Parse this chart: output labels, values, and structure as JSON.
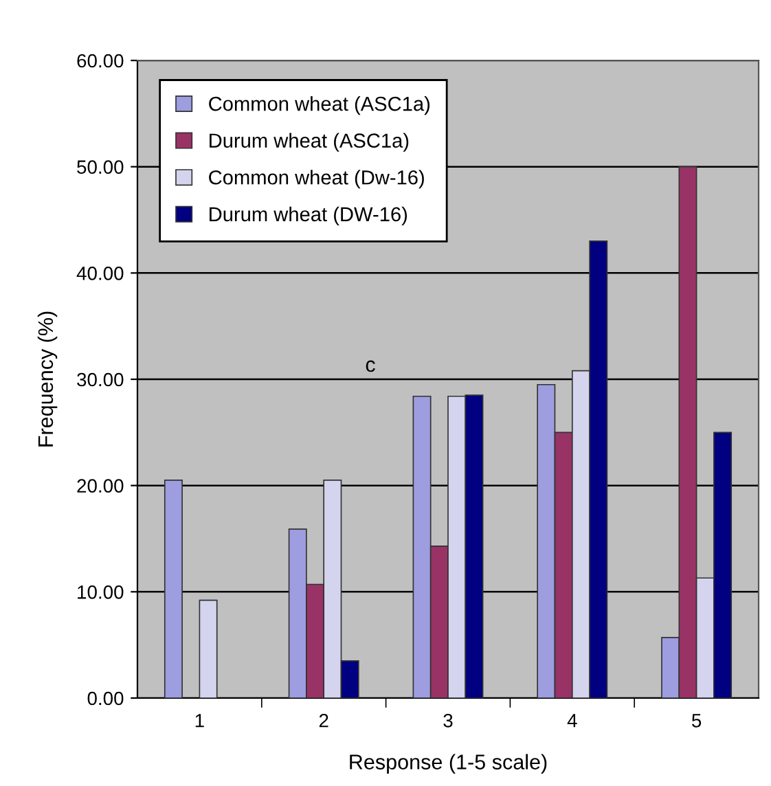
{
  "chart_data": {
    "type": "bar",
    "xlabel": "Response (1-5 scale)",
    "ylabel": "Frequency (%)",
    "categories": [
      "1",
      "2",
      "3",
      "4",
      "5"
    ],
    "series": [
      {
        "name": "Common wheat (ASC1a)",
        "color": "#9d9de0",
        "values": [
          20.5,
          15.9,
          28.4,
          29.5,
          5.7
        ]
      },
      {
        "name": "Durum wheat (ASC1a)",
        "color": "#993366",
        "values": [
          null,
          10.7,
          14.3,
          25.0,
          50.0
        ]
      },
      {
        "name": "Common wheat (Dw-16)",
        "color": "#d4d4ee",
        "values": [
          9.2,
          20.5,
          28.4,
          30.8,
          11.3
        ]
      },
      {
        "name": "Durum wheat (DW-16)",
        "color": "#000080",
        "values": [
          null,
          3.5,
          28.5,
          43.0,
          25.0
        ]
      }
    ],
    "ylim": [
      0,
      60
    ],
    "yticks": [
      {
        "value": 0,
        "label": "0.00"
      },
      {
        "value": 10,
        "label": "10.00"
      },
      {
        "value": 20,
        "label": "20.00"
      },
      {
        "value": 30,
        "label": "30.00"
      },
      {
        "value": 40,
        "label": "40.00"
      },
      {
        "value": 50,
        "label": "50.00"
      },
      {
        "value": 60,
        "label": "60.00"
      }
    ],
    "grid": "y",
    "legend": "top left",
    "annotations": [
      "c"
    ]
  }
}
